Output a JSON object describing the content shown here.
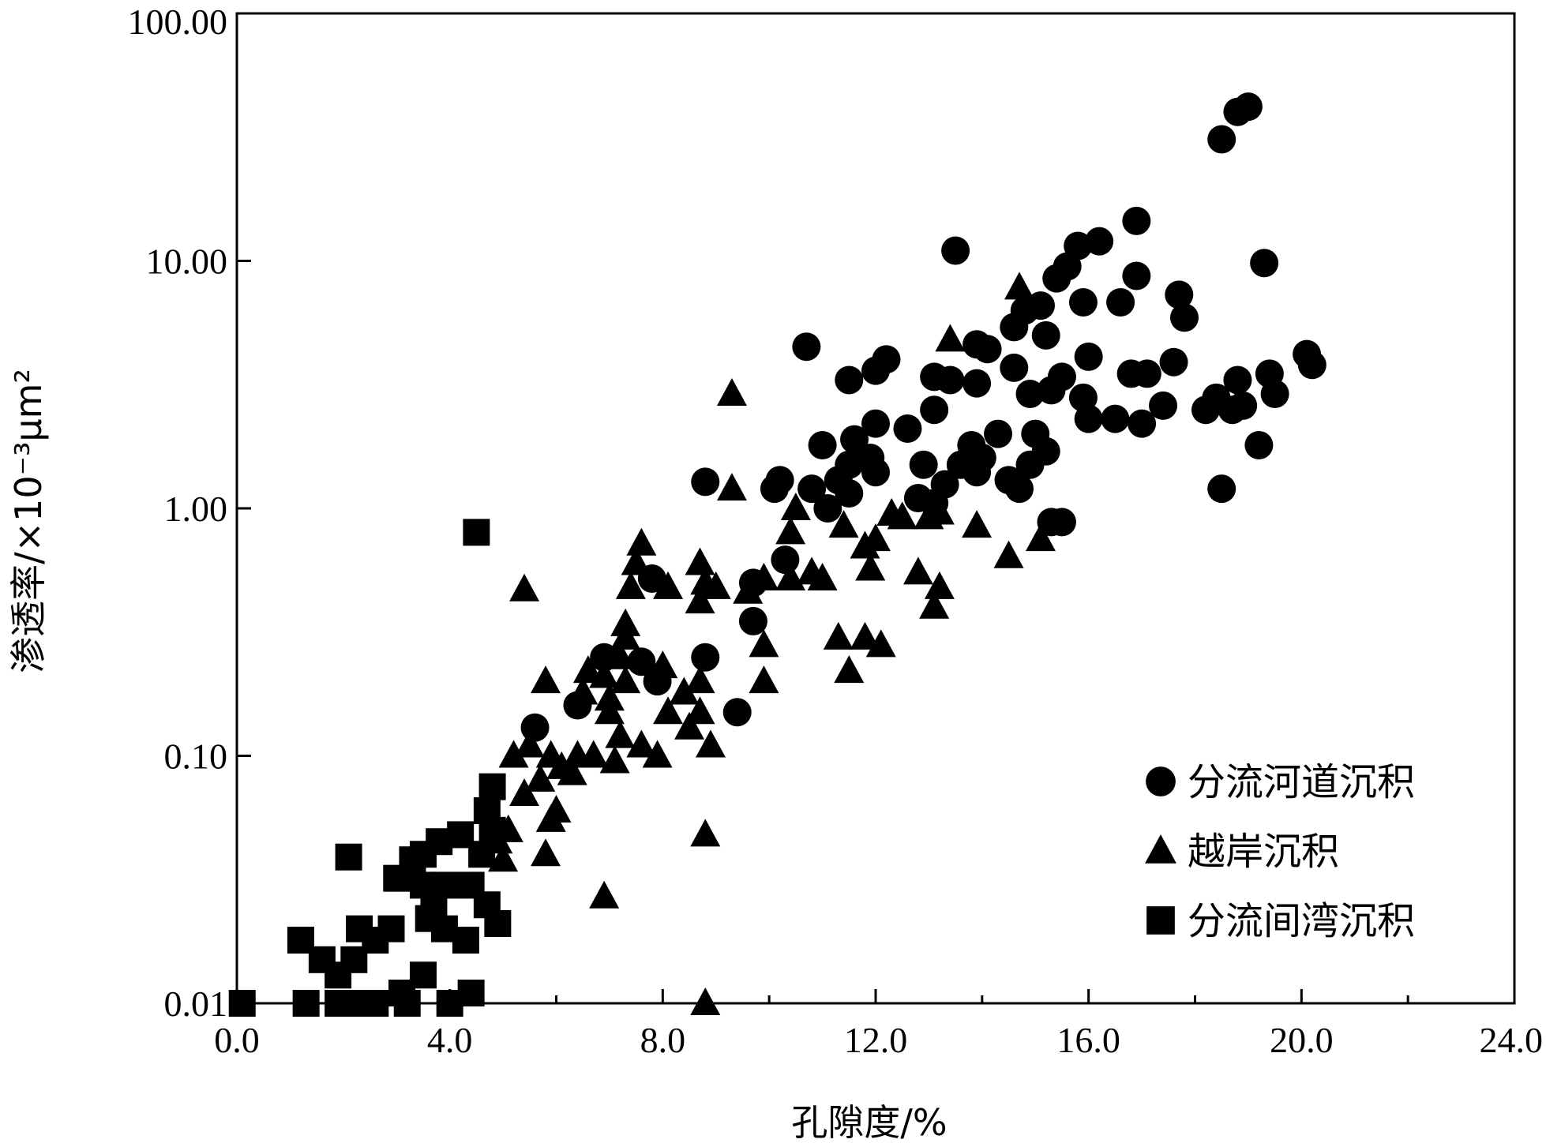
{
  "chart_data": {
    "type": "scatter",
    "title": "",
    "xlabel": "孔隙度/%",
    "ylabel": "渗透率/×10⁻³μm²",
    "xlim": [
      0,
      24
    ],
    "ylim": [
      0.01,
      100
    ],
    "y_scale": "log",
    "x_ticks": [
      "0.0",
      "4.0",
      "8.0",
      "12.0",
      "16.0",
      "20.0",
      "24.0"
    ],
    "y_ticks": [
      "0.01",
      "0.10",
      "1.00",
      "10.00",
      "100.00"
    ],
    "grid": false,
    "legend_position": "bottom-right",
    "series": [
      {
        "name": "分流河道沉积",
        "marker": "circle",
        "color": "#000000",
        "points": [
          [
            18.5,
            31
          ],
          [
            18.8,
            40
          ],
          [
            19.0,
            42
          ],
          [
            19.3,
            9.8
          ],
          [
            16.9,
            14.5
          ],
          [
            16.2,
            12
          ],
          [
            15.8,
            11.5
          ],
          [
            13.5,
            11
          ],
          [
            15.6,
            9.5
          ],
          [
            15.4,
            8.5
          ],
          [
            16.9,
            8.7
          ],
          [
            16.6,
            6.8
          ],
          [
            17.7,
            7.3
          ],
          [
            17.8,
            5.9
          ],
          [
            15.9,
            6.8
          ],
          [
            15.1,
            6.6
          ],
          [
            14.8,
            6.3
          ],
          [
            14.6,
            5.4
          ],
          [
            15.2,
            5.0
          ],
          [
            13.9,
            4.6
          ],
          [
            14.1,
            4.4
          ],
          [
            10.7,
            4.5
          ],
          [
            12.2,
            4.0
          ],
          [
            12.0,
            3.6
          ],
          [
            11.5,
            3.3
          ],
          [
            13.1,
            3.4
          ],
          [
            13.4,
            3.3
          ],
          [
            13.9,
            3.2
          ],
          [
            14.6,
            3.7
          ],
          [
            15.5,
            3.4
          ],
          [
            15.3,
            3.0
          ],
          [
            16.0,
            4.1
          ],
          [
            16.8,
            3.5
          ],
          [
            17.1,
            3.5
          ],
          [
            17.6,
            3.9
          ],
          [
            18.8,
            3.3
          ],
          [
            18.4,
            2.8
          ],
          [
            19.4,
            3.5
          ],
          [
            19.5,
            2.9
          ],
          [
            20.1,
            4.2
          ],
          [
            20.2,
            3.8
          ],
          [
            18.2,
            2.5
          ],
          [
            18.7,
            2.5
          ],
          [
            18.9,
            2.6
          ],
          [
            17.4,
            2.6
          ],
          [
            17.0,
            2.2
          ],
          [
            16.5,
            2.3
          ],
          [
            16.0,
            2.3
          ],
          [
            15.9,
            2.8
          ],
          [
            14.9,
            2.9
          ],
          [
            15.0,
            2.0
          ],
          [
            14.3,
            2.0
          ],
          [
            13.8,
            1.8
          ],
          [
            14.0,
            1.6
          ],
          [
            13.6,
            1.5
          ],
          [
            13.9,
            1.4
          ],
          [
            14.5,
            1.3
          ],
          [
            14.7,
            1.2
          ],
          [
            15.2,
            1.7
          ],
          [
            14.9,
            1.5
          ],
          [
            12.6,
            2.1
          ],
          [
            12.0,
            2.2
          ],
          [
            11.6,
            1.9
          ],
          [
            11.9,
            1.6
          ],
          [
            11.5,
            1.5
          ],
          [
            12.0,
            1.4
          ],
          [
            11.3,
            1.3
          ],
          [
            11.5,
            1.15
          ],
          [
            11.1,
            1.0
          ],
          [
            10.8,
            1.2
          ],
          [
            11.0,
            1.8
          ],
          [
            10.2,
            1.3
          ],
          [
            10.1,
            1.2
          ],
          [
            8.8,
            1.28
          ],
          [
            12.9,
            1.5
          ],
          [
            12.8,
            1.1
          ],
          [
            13.1,
            1.05
          ],
          [
            13.3,
            1.25
          ],
          [
            13.1,
            2.5
          ],
          [
            19.2,
            1.8
          ],
          [
            18.5,
            1.2
          ],
          [
            15.3,
            0.88
          ],
          [
            15.5,
            0.88
          ],
          [
            10.3,
            0.62
          ],
          [
            7.8,
            0.52
          ],
          [
            9.7,
            0.5
          ],
          [
            9.7,
            0.35
          ],
          [
            8.8,
            0.25
          ],
          [
            7.6,
            0.24
          ],
          [
            7.9,
            0.2
          ],
          [
            6.9,
            0.25
          ],
          [
            9.4,
            0.15
          ],
          [
            5.6,
            0.13
          ],
          [
            6.4,
            0.16
          ]
        ]
      },
      {
        "name": "越岸沉积",
        "marker": "triangle",
        "color": "#000000",
        "points": [
          [
            14.7,
            7.8
          ],
          [
            13.4,
            4.8
          ],
          [
            9.3,
            2.9
          ],
          [
            9.3,
            1.2
          ],
          [
            10.5,
            1.0
          ],
          [
            10.4,
            0.8
          ],
          [
            11.4,
            0.85
          ],
          [
            12.0,
            0.75
          ],
          [
            11.8,
            0.7
          ],
          [
            12.3,
            0.95
          ],
          [
            12.5,
            0.92
          ],
          [
            13.0,
            0.92
          ],
          [
            13.2,
            0.96
          ],
          [
            13.9,
            0.85
          ],
          [
            15.1,
            0.75
          ],
          [
            14.5,
            0.64
          ],
          [
            7.6,
            0.72
          ],
          [
            7.5,
            0.6
          ],
          [
            7.4,
            0.48
          ],
          [
            8.7,
            0.6
          ],
          [
            8.8,
            0.5
          ],
          [
            9.0,
            0.48
          ],
          [
            8.1,
            0.48
          ],
          [
            8.7,
            0.42
          ],
          [
            9.9,
            0.52
          ],
          [
            9.6,
            0.46
          ],
          [
            10.4,
            0.52
          ],
          [
            10.8,
            0.55
          ],
          [
            11.0,
            0.52
          ],
          [
            11.9,
            0.57
          ],
          [
            12.8,
            0.55
          ],
          [
            13.2,
            0.48
          ],
          [
            13.1,
            0.4
          ],
          [
            5.4,
            0.47
          ],
          [
            7.3,
            0.34
          ],
          [
            7.3,
            0.3
          ],
          [
            9.9,
            0.28
          ],
          [
            11.3,
            0.3
          ],
          [
            11.8,
            0.3
          ],
          [
            12.1,
            0.28
          ],
          [
            11.5,
            0.22
          ],
          [
            9.9,
            0.2
          ],
          [
            8.0,
            0.23
          ],
          [
            7.2,
            0.25
          ],
          [
            6.6,
            0.22
          ],
          [
            6.9,
            0.21
          ],
          [
            7.3,
            0.2
          ],
          [
            5.8,
            0.2
          ],
          [
            6.5,
            0.18
          ],
          [
            7.0,
            0.17
          ],
          [
            7.0,
            0.15
          ],
          [
            8.7,
            0.2
          ],
          [
            8.4,
            0.18
          ],
          [
            8.1,
            0.15
          ],
          [
            8.7,
            0.15
          ],
          [
            8.5,
            0.13
          ],
          [
            7.2,
            0.12
          ],
          [
            7.6,
            0.11
          ],
          [
            7.9,
            0.1
          ],
          [
            8.9,
            0.11
          ],
          [
            6.4,
            0.1
          ],
          [
            6.7,
            0.1
          ],
          [
            7.1,
            0.095
          ],
          [
            5.5,
            0.11
          ],
          [
            5.9,
            0.1
          ],
          [
            5.2,
            0.1
          ],
          [
            6.1,
            0.09
          ],
          [
            6.3,
            0.085
          ],
          [
            5.7,
            0.08
          ],
          [
            5.4,
            0.07
          ],
          [
            6.0,
            0.06
          ],
          [
            5.9,
            0.055
          ],
          [
            5.1,
            0.05
          ],
          [
            4.9,
            0.045
          ],
          [
            5.0,
            0.038
          ],
          [
            5.8,
            0.04
          ],
          [
            8.8,
            0.048
          ],
          [
            6.9,
            0.027
          ],
          [
            8.8,
            0.01
          ]
        ]
      },
      {
        "name": "分流间湾沉积",
        "marker": "square",
        "color": "#000000",
        "points": [
          [
            4.5,
            0.8
          ],
          [
            4.8,
            0.075
          ],
          [
            4.7,
            0.06
          ],
          [
            4.8,
            0.05
          ],
          [
            4.6,
            0.04
          ],
          [
            4.2,
            0.048
          ],
          [
            3.8,
            0.045
          ],
          [
            3.5,
            0.04
          ],
          [
            3.3,
            0.038
          ],
          [
            2.1,
            0.039
          ],
          [
            3.0,
            0.032
          ],
          [
            3.5,
            0.03
          ],
          [
            3.9,
            0.03
          ],
          [
            4.4,
            0.03
          ],
          [
            4.7,
            0.025
          ],
          [
            4.9,
            0.021
          ],
          [
            3.7,
            0.025
          ],
          [
            3.9,
            0.02
          ],
          [
            4.3,
            0.018
          ],
          [
            3.6,
            0.022
          ],
          [
            2.9,
            0.02
          ],
          [
            2.6,
            0.018
          ],
          [
            2.3,
            0.02
          ],
          [
            1.2,
            0.018
          ],
          [
            1.6,
            0.015
          ],
          [
            2.2,
            0.015
          ],
          [
            1.9,
            0.013
          ],
          [
            3.1,
            0.011
          ],
          [
            3.5,
            0.013
          ],
          [
            4.4,
            0.011
          ],
          [
            4.0,
            0.01
          ],
          [
            3.2,
            0.01
          ],
          [
            2.3,
            0.01
          ],
          [
            1.9,
            0.01
          ],
          [
            1.3,
            0.01
          ],
          [
            0.1,
            0.01
          ],
          [
            2.6,
            0.01
          ]
        ]
      }
    ]
  }
}
